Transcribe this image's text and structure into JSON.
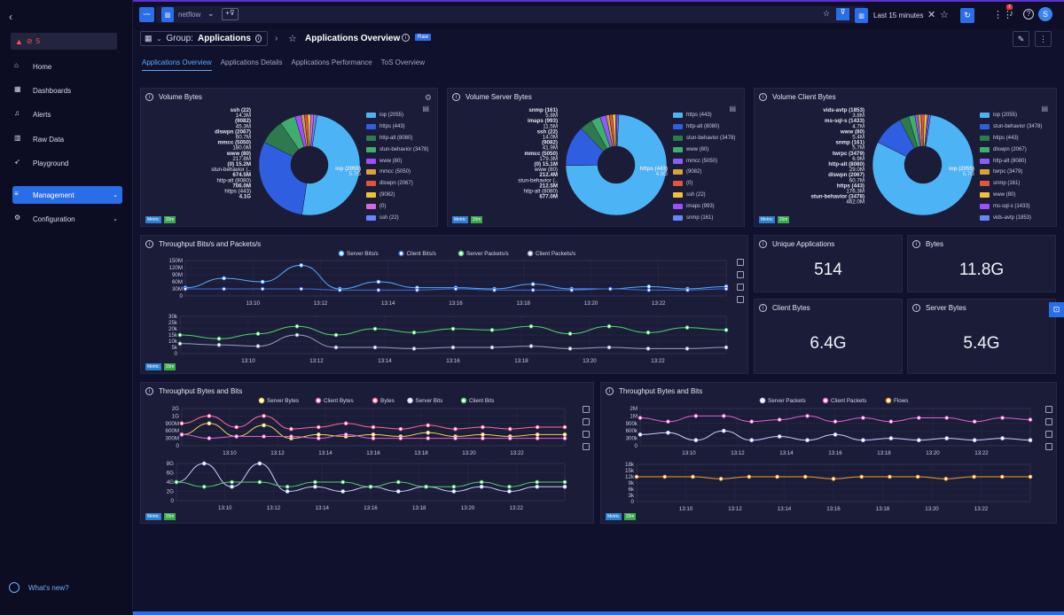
{
  "sidebar": {
    "alert_count": "5",
    "items": [
      {
        "label": "Home"
      },
      {
        "label": "Dashboards"
      },
      {
        "label": "Alerts"
      },
      {
        "label": "Raw Data"
      },
      {
        "label": "Playground"
      },
      {
        "label": "Management"
      },
      {
        "label": "Configuration"
      }
    ],
    "whats_new": "What's new?"
  },
  "topbar": {
    "source": "netflow",
    "time_range": "Last 15 minutes",
    "notif_count": "7",
    "avatar": "S"
  },
  "header": {
    "group_prefix": "Group:",
    "group_name": "Applications",
    "title": "Applications Overview",
    "raw_badge": "Raw"
  },
  "tabs": [
    "Applications Overview",
    "Applications Details",
    "Applications Performance",
    "ToS Overview"
  ],
  "badges": {
    "metric": "Metric",
    "interval": "15m"
  },
  "pies": [
    {
      "title": "Volume Bytes",
      "slices": [
        {
          "l": "iop (2055)",
          "c": "#4cb3f5",
          "v": 0.5
        },
        {
          "l": "https (443)",
          "c": "#2f5fe0",
          "v": 0.3
        },
        {
          "l": "http-alt (8080)",
          "c": "#2e7a4e",
          "v": 0.08
        },
        {
          "l": "stun-behavior (3478)",
          "c": "#3fae6c",
          "v": 0.05
        },
        {
          "l": "www (80)",
          "c": "#a04cff",
          "v": 0.02
        },
        {
          "l": "mmcc (5050)",
          "c": "#d7a33f",
          "v": 0.01
        },
        {
          "l": "dlswpn (2067)",
          "c": "#e2553b",
          "v": 0.01
        },
        {
          "l": "(9082)",
          "c": "#f0c23a",
          "v": 0.01
        },
        {
          "l": "(0)",
          "c": "#d46bd6",
          "v": 0.01
        },
        {
          "l": "ssh (22)",
          "c": "#6a83ff",
          "v": 0.01
        }
      ],
      "labels": [
        "ssh (22)",
        "14.3M",
        "(9082)",
        "45.3M",
        "dlswpn (2067)",
        "60.7M",
        "mmcc (5050)",
        "180.0M",
        "www (80)",
        "217.8M",
        "(0) 15.2M",
        "stun-behavior (..",
        "674.5M",
        "http-alt (8080)",
        "706.0M",
        "https (443)",
        "4.1G",
        "iop (2055)",
        "5.7G"
      ]
    },
    {
      "title": "Volume Server Bytes",
      "slices": [
        {
          "l": "https (443)",
          "c": "#4cb3f5",
          "v": 0.74
        },
        {
          "l": "http-alt (8080)",
          "c": "#2f5fe0",
          "v": 0.13
        },
        {
          "l": "stun-behavior (3478)",
          "c": "#2e7a4e",
          "v": 0.04
        },
        {
          "l": "www (80)",
          "c": "#3fae6c",
          "v": 0.03
        },
        {
          "l": "mmcc (5050)",
          "c": "#8b5cf6",
          "v": 0.02
        },
        {
          "l": "(9082)",
          "c": "#d7a33f",
          "v": 0.01
        },
        {
          "l": "(0)",
          "c": "#e2553b",
          "v": 0.01
        },
        {
          "l": "ssh (22)",
          "c": "#f0c23a",
          "v": 0.01
        },
        {
          "l": "imaps (993)",
          "c": "#a04cff",
          "v": 0.005
        },
        {
          "l": "snmp (161)",
          "c": "#6a83ff",
          "v": 0.005
        }
      ],
      "labels": [
        "snmp (161)",
        "5.8M",
        "imaps (993)",
        "11.5M",
        "ssh (22)",
        "14.0M",
        "(9082)",
        "41.9M",
        "mmcc (5050)",
        "179.3M",
        "(0) 15.1M",
        "www (80)",
        "212.4M",
        "stun-behavior (..",
        "212.5M",
        "http-alt (8080)",
        "677.0M",
        "https (443)",
        "4.0G"
      ]
    },
    {
      "title": "Volume Client Bytes",
      "slices": [
        {
          "l": "iop (2055)",
          "c": "#4cb3f5",
          "v": 0.8
        },
        {
          "l": "stun-behavior (3478)",
          "c": "#2f5fe0",
          "v": 0.1
        },
        {
          "l": "https (443)",
          "c": "#2e7a4e",
          "v": 0.03
        },
        {
          "l": "dlswpn (2067)",
          "c": "#3fae6c",
          "v": 0.02
        },
        {
          "l": "http-alt (8080)",
          "c": "#8b5cf6",
          "v": 0.01
        },
        {
          "l": "twrpc (3479)",
          "c": "#d7a33f",
          "v": 0.01
        },
        {
          "l": "snmp (161)",
          "c": "#e2553b",
          "v": 0.01
        },
        {
          "l": "www (80)",
          "c": "#f0c23a",
          "v": 0.01
        },
        {
          "l": "ms-sql-s (1433)",
          "c": "#a04cff",
          "v": 0.005
        },
        {
          "l": "vids-avtp (1853)",
          "c": "#6a83ff",
          "v": 0.005
        }
      ],
      "labels": [
        "vids-avtp (1853)",
        "3.8M",
        "ms-sql-s (1433)",
        "4.7M",
        "www (80)",
        "5.4M",
        "snmp (161)",
        "5.7M",
        "twrpc (3479)",
        "6.9M",
        "http-alt (8080)",
        "29.0M",
        "dlswpn (2067)",
        "60.7M",
        "https (443)",
        "176.3M",
        "stun-behavior (3478)",
        "462.0M",
        "iop (2055)",
        "5.7G"
      ]
    }
  ],
  "stats": [
    {
      "title": "Unique Applications",
      "value": "514"
    },
    {
      "title": "Bytes",
      "value": "11.8G"
    },
    {
      "title": "Client Bytes",
      "value": "6.4G"
    },
    {
      "title": "Server Bytes",
      "value": "5.4G"
    }
  ],
  "throughput1": {
    "title": "Throughput Bits/s and Packets/s",
    "legend": [
      "Server Bits/s",
      "Client Bits/s",
      "Server Packets/s",
      "Client Packets/s"
    ],
    "y1": [
      "150M",
      "120M",
      "90M",
      "60M",
      "30M",
      "0"
    ],
    "y2": [
      "30k",
      "25k",
      "20k",
      "15k",
      "10k",
      "5k",
      "0"
    ],
    "x": [
      "13:10",
      "13:12",
      "13:14",
      "13:16",
      "13:18",
      "13:20",
      "13:22"
    ]
  },
  "throughput2": {
    "title": "Throughput Bytes and Bits",
    "legend": [
      "Server Bytes",
      "Client Bytes",
      "Bytes",
      "Server Bits",
      "Client Bits"
    ],
    "y1": [
      "2G",
      "1G",
      "900M",
      "600M",
      "300M",
      "0"
    ],
    "y2": [
      "8G",
      "6G",
      "4G",
      "2G",
      "0"
    ],
    "x": [
      "13:10",
      "13:12",
      "13:14",
      "13:16",
      "13:18",
      "13:20",
      "13:22"
    ]
  },
  "throughput3": {
    "title": "Throughput Bytes and Bits",
    "legend": [
      "Server Packets",
      "Client Packets",
      "Flows"
    ],
    "y1": [
      "2M",
      "1M",
      "900k",
      "600k",
      "300k",
      "0"
    ],
    "y2": [
      "18k",
      "15k",
      "12k",
      "9k",
      "6k",
      "3k",
      "0"
    ],
    "x": [
      "13:10",
      "13:12",
      "13:14",
      "13:16",
      "13:18",
      "13:20",
      "13:22"
    ]
  },
  "chart_data": [
    {
      "type": "line",
      "title": "Throughput Bits/s and Packets/s",
      "x": [
        "13:09",
        "13:10",
        "13:11",
        "13:12",
        "13:13",
        "13:14",
        "13:15",
        "13:16",
        "13:17",
        "13:18",
        "13:19",
        "13:20",
        "13:21",
        "13:22",
        "13:23"
      ],
      "series": [
        {
          "name": "Server Bits/s",
          "values": [
            35,
            75,
            60,
            130,
            30,
            60,
            35,
            35,
            30,
            50,
            30,
            30,
            40,
            30,
            40
          ]
        },
        {
          "name": "Client Bits/s",
          "values": [
            30,
            30,
            30,
            30,
            25,
            25,
            25,
            30,
            25,
            25,
            25,
            30,
            25,
            25,
            30
          ]
        }
      ],
      "ylim": [
        0,
        150
      ]
    },
    {
      "type": "line",
      "title": "Throughput Bits/s and Packets/s",
      "x": [
        "13:09",
        "13:10",
        "13:11",
        "13:12",
        "13:13",
        "13:14",
        "13:15",
        "13:16",
        "13:17",
        "13:18",
        "13:19",
        "13:20",
        "13:21",
        "13:22",
        "13:23"
      ],
      "series": [
        {
          "name": "Server Packets/s",
          "values": [
            15,
            12,
            16,
            22,
            15,
            20,
            17,
            20,
            19,
            22,
            16,
            22,
            17,
            21,
            19
          ]
        },
        {
          "name": "Client Packets/s",
          "values": [
            8,
            7,
            6,
            15,
            5,
            5,
            4,
            5,
            5,
            6,
            4,
            5,
            4,
            4,
            5
          ]
        }
      ],
      "ylim": [
        0,
        30
      ]
    },
    {
      "type": "line",
      "title": "Throughput Bytes and Bits",
      "x": [
        "13:09",
        "13:10",
        "13:11",
        "13:12",
        "13:13",
        "13:14",
        "13:15",
        "13:16",
        "13:17",
        "13:18",
        "13:19",
        "13:20",
        "13:21",
        "13:22",
        "13:23"
      ],
      "series": [
        {
          "name": "Bytes",
          "values": [
            1.2,
            1.6,
            1.0,
            1.6,
            0.9,
            1.0,
            1.2,
            1.0,
            0.9,
            1.1,
            0.9,
            1.0,
            0.9,
            1.0,
            1.0
          ]
        },
        {
          "name": "Server Bytes",
          "values": [
            0.6,
            1.2,
            0.5,
            1.1,
            0.4,
            0.6,
            0.5,
            0.6,
            0.5,
            0.7,
            0.5,
            0.6,
            0.5,
            0.6,
            0.6
          ]
        },
        {
          "name": "Client Bytes",
          "values": [
            0.6,
            0.4,
            0.5,
            0.5,
            0.5,
            0.4,
            0.6,
            0.4,
            0.4,
            0.4,
            0.4,
            0.4,
            0.4,
            0.4,
            0.4
          ]
        }
      ],
      "ylim": [
        0,
        2
      ]
    },
    {
      "type": "line",
      "title": "Throughput Bytes and Bits",
      "x": [
        "13:09",
        "13:10",
        "13:11",
        "13:12",
        "13:13",
        "13:14",
        "13:15",
        "13:16",
        "13:17",
        "13:18",
        "13:19",
        "13:20",
        "13:21",
        "13:22",
        "13:23"
      ],
      "series": [
        {
          "name": "Server Bits",
          "values": [
            4,
            8,
            3,
            8,
            2,
            3,
            2,
            3,
            2,
            3,
            2,
            3,
            2,
            3,
            3
          ]
        },
        {
          "name": "Client Bits",
          "values": [
            4,
            3,
            4,
            4,
            3,
            4,
            4,
            3,
            4,
            3,
            3,
            4,
            3,
            4,
            4
          ]
        }
      ],
      "ylim": [
        0,
        8
      ]
    },
    {
      "type": "line",
      "title": "Throughput Bytes and Bits",
      "x": [
        "13:09",
        "13:10",
        "13:11",
        "13:12",
        "13:13",
        "13:14",
        "13:15",
        "13:16",
        "13:17",
        "13:18",
        "13:19",
        "13:20",
        "13:21",
        "13:22",
        "13:23"
      ],
      "series": [
        {
          "name": "Client Packets",
          "values": [
            1.5,
            1.3,
            1.6,
            1.6,
            1.3,
            1.4,
            1.6,
            1.3,
            1.5,
            1.3,
            1.5,
            1.5,
            1.3,
            1.5,
            1.4
          ]
        },
        {
          "name": "Server Packets",
          "values": [
            0.6,
            0.7,
            0.3,
            0.8,
            0.3,
            0.5,
            0.3,
            0.6,
            0.3,
            0.4,
            0.3,
            0.4,
            0.3,
            0.4,
            0.3
          ]
        }
      ],
      "ylim": [
        0,
        2
      ]
    },
    {
      "type": "line",
      "title": "Throughput Bytes and Bits",
      "x": [
        "13:09",
        "13:10",
        "13:11",
        "13:12",
        "13:13",
        "13:14",
        "13:15",
        "13:16",
        "13:17",
        "13:18",
        "13:19",
        "13:20",
        "13:21",
        "13:22",
        "13:23"
      ],
      "series": [
        {
          "name": "Flows",
          "values": [
            12,
            12,
            12,
            11,
            12,
            12,
            12,
            11,
            12,
            12,
            12,
            11,
            12,
            12,
            12
          ]
        }
      ],
      "ylim": [
        0,
        18
      ]
    }
  ]
}
